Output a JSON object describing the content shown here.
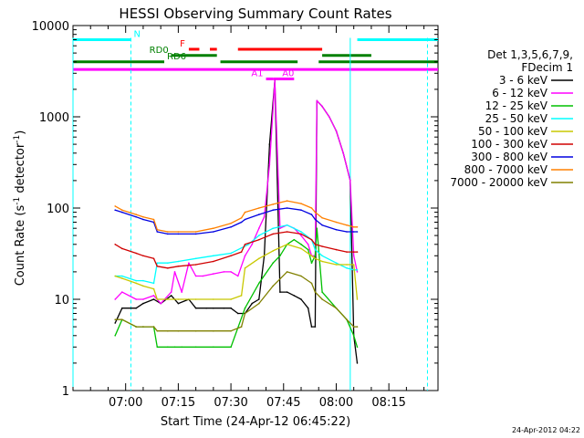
{
  "chart_data": {
    "type": "line",
    "title": "HESSI Observing Summary Count Rates",
    "xlabel": "Start Time (24-Apr-12 06:45:22)",
    "ylabel_main": "Count Rate (s",
    "ylabel_sup1": "-1",
    "ylabel_mid": " detector",
    "ylabel_sup2": "-1",
    "ylabel_end": ")",
    "yscale": "log",
    "ylim": [
      1,
      10000
    ],
    "xlim_minutes": [
      -15,
      89
    ],
    "x_unit": "minutes after 07:00",
    "xticks": [
      {
        "label": "07:00",
        "value": 0
      },
      {
        "label": "07:15",
        "value": 15
      },
      {
        "label": "07:30",
        "value": 30
      },
      {
        "label": "07:45",
        "value": 45
      },
      {
        "label": "08:00",
        "value": 60
      },
      {
        "label": "08:15",
        "value": 75
      }
    ],
    "yticks": [
      {
        "label": "1",
        "value": 1
      },
      {
        "label": "10",
        "value": 10
      },
      {
        "label": "100",
        "value": 100
      },
      {
        "label": "1000",
        "value": 1000
      },
      {
        "label": "10000",
        "value": 10000
      }
    ],
    "legend_header": [
      "Det 1,3,5,6,7,9,",
      "FDecim 1"
    ],
    "legend_position": "right",
    "series": [
      {
        "name": "3 - 6 keV",
        "color": "#000000",
        "x": [
          -3,
          -1,
          3,
          5,
          8,
          10,
          13,
          15,
          18,
          20,
          23,
          25,
          28,
          30,
          32,
          34,
          36,
          38,
          39.5,
          41,
          42.5,
          44,
          46,
          48,
          50,
          52,
          53,
          54,
          54.5,
          56,
          58,
          60,
          62,
          64,
          65,
          66
        ],
        "y": [
          5.5,
          8,
          8,
          9,
          10,
          9,
          11,
          9,
          10,
          8,
          8,
          8,
          8,
          8,
          7,
          7,
          9,
          10,
          30,
          500,
          2500,
          12,
          12,
          11,
          10,
          8,
          5,
          5,
          1500,
          1300,
          1000,
          700,
          400,
          200,
          4,
          2
        ]
      },
      {
        "name": "6 - 12 keV",
        "color": "#ff00ff",
        "x": [
          -3,
          -1,
          3,
          5,
          8,
          10,
          13,
          14,
          16,
          18,
          20,
          22,
          25,
          28,
          30,
          32,
          34,
          36,
          38,
          39.5,
          41,
          42.5,
          44,
          46,
          48,
          50,
          52,
          53,
          54,
          54.5,
          56,
          58,
          60,
          62,
          64,
          65,
          66
        ],
        "y": [
          10,
          12,
          10,
          10,
          11,
          9,
          12,
          20,
          12,
          25,
          18,
          18,
          19,
          20,
          20,
          18,
          30,
          40,
          60,
          80,
          300,
          2500,
          60,
          65,
          60,
          50,
          40,
          30,
          30,
          1500,
          1300,
          1000,
          700,
          400,
          200,
          30,
          20
        ]
      },
      {
        "name": "12 - 25 keV",
        "color": "#00c000",
        "x": [
          -3,
          -1,
          3,
          5,
          8,
          9,
          12,
          14,
          16,
          20,
          25,
          30,
          34,
          38,
          42,
          44,
          46,
          48,
          50,
          52,
          53,
          54,
          54.5,
          56,
          60,
          63,
          65,
          66
        ],
        "y": [
          4,
          6,
          5,
          5,
          5,
          3,
          3,
          3,
          3,
          3,
          3,
          3,
          8,
          15,
          25,
          30,
          40,
          45,
          40,
          35,
          25,
          30,
          60,
          12,
          8,
          6,
          4,
          3
        ]
      },
      {
        "name": "25 - 50 keV",
        "color": "#00ffff",
        "x": [
          -3,
          -1,
          3,
          5,
          8,
          9,
          12,
          15,
          20,
          25,
          30,
          35,
          38,
          42,
          46,
          50,
          53,
          54,
          56,
          60,
          63,
          65,
          66
        ],
        "y": [
          18,
          18,
          16,
          16,
          15,
          25,
          25,
          26,
          28,
          30,
          32,
          40,
          50,
          60,
          65,
          55,
          45,
          35,
          30,
          25,
          22,
          21,
          21
        ]
      },
      {
        "name": "50 - 100 keV",
        "color": "#c8c800",
        "x": [
          -3,
          -1,
          3,
          5,
          8,
          9,
          12,
          15,
          20,
          25,
          30,
          33,
          34,
          38,
          42,
          46,
          50,
          53,
          54,
          56,
          60,
          63,
          65,
          66
        ],
        "y": [
          18,
          17,
          15,
          14,
          13,
          10,
          10,
          10,
          10,
          10,
          10,
          11,
          22,
          28,
          34,
          40,
          36,
          30,
          28,
          26,
          24,
          24,
          24,
          10
        ]
      },
      {
        "name": "100 - 300 keV",
        "color": "#d00000",
        "x": [
          -3,
          -1,
          3,
          5,
          8,
          9,
          12,
          15,
          20,
          25,
          30,
          33,
          34,
          38,
          42,
          46,
          50,
          53,
          54,
          56,
          60,
          63,
          65,
          66
        ],
        "y": [
          40,
          36,
          32,
          30,
          28,
          23,
          22,
          23,
          24,
          26,
          30,
          33,
          40,
          45,
          52,
          55,
          52,
          45,
          40,
          38,
          35,
          33,
          33,
          33
        ]
      },
      {
        "name": "300 - 800 keV",
        "color": "#0000e0",
        "x": [
          -3,
          -1,
          3,
          5,
          8,
          9,
          12,
          15,
          20,
          25,
          30,
          33,
          34,
          38,
          42,
          46,
          50,
          53,
          54,
          56,
          60,
          63,
          65,
          66
        ],
        "y": [
          95,
          90,
          80,
          75,
          70,
          55,
          52,
          52,
          52,
          55,
          62,
          70,
          75,
          85,
          95,
          100,
          95,
          85,
          75,
          65,
          58,
          55,
          55,
          55
        ]
      },
      {
        "name": "800 - 7000 keV",
        "color": "#ff8000",
        "x": [
          -3,
          -1,
          3,
          5,
          8,
          9,
          12,
          15,
          20,
          25,
          30,
          33,
          34,
          38,
          42,
          46,
          50,
          53,
          54,
          56,
          60,
          63,
          65,
          66
        ],
        "y": [
          105,
          95,
          85,
          80,
          75,
          58,
          55,
          55,
          55,
          60,
          68,
          78,
          90,
          100,
          110,
          120,
          112,
          100,
          90,
          78,
          70,
          65,
          62,
          62
        ]
      },
      {
        "name": "7000 - 20000 keV",
        "color": "#808000",
        "x": [
          -3,
          -1,
          3,
          5,
          8,
          9,
          12,
          15,
          20,
          25,
          30,
          33,
          34,
          38,
          42,
          46,
          50,
          53,
          54,
          56,
          60,
          63,
          65,
          66
        ],
        "y": [
          6,
          6,
          5,
          5,
          5,
          4.5,
          4.5,
          4.5,
          4.5,
          4.5,
          4.5,
          5,
          7,
          9,
          14,
          20,
          18,
          15,
          12,
          10,
          8,
          6,
          5,
          5
        ]
      }
    ],
    "flag_bars": [
      {
        "label": "N",
        "color": "#00ffff",
        "y": 7000,
        "segments": [
          [
            -15,
            1.5
          ],
          [
            66,
            89
          ]
        ]
      },
      {
        "label": "F",
        "color": "#ff0000",
        "y": 5500,
        "segments": [
          [
            18,
            21
          ],
          [
            24,
            26
          ],
          [
            32,
            56
          ]
        ]
      },
      {
        "label": "RD0",
        "color": "#008000",
        "y": 4700,
        "segments": [
          [
            13,
            26
          ],
          [
            56,
            70
          ]
        ]
      },
      {
        "label": "RD6",
        "color": "#008000",
        "y": 4000,
        "segments": [
          [
            -15,
            11
          ],
          [
            27,
            49
          ],
          [
            55,
            89
          ]
        ]
      },
      {
        "label": "",
        "color": "#ff00ff",
        "y": 3300,
        "segments": [
          [
            -15,
            89
          ]
        ]
      },
      {
        "label": "A1",
        "color": "#ff00ff",
        "y": 2600,
        "segments": [
          [
            40,
            42
          ]
        ]
      },
      {
        "label": "A0",
        "color": "#ff00ff",
        "y": 2600,
        "segments": [
          [
            42,
            48
          ]
        ]
      }
    ],
    "vertical_lines": [
      {
        "color": "#00ffff",
        "x": -15,
        "style": "solid"
      },
      {
        "color": "#00ffff",
        "x": 1.5,
        "style": "dashed"
      },
      {
        "color": "#00ffff",
        "x": 64,
        "style": "solid"
      },
      {
        "color": "#00ffff",
        "x": 86,
        "style": "dashed"
      }
    ],
    "timestamp": "24-Apr-2012 04:22"
  }
}
